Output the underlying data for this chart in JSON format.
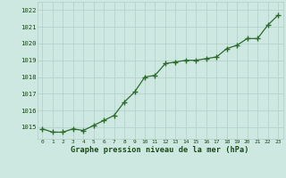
{
  "x": [
    0,
    1,
    2,
    3,
    4,
    5,
    6,
    7,
    8,
    9,
    10,
    11,
    12,
    13,
    14,
    15,
    16,
    17,
    18,
    19,
    20,
    21,
    22,
    23
  ],
  "y": [
    1014.9,
    1014.7,
    1014.7,
    1014.9,
    1014.8,
    1015.1,
    1015.4,
    1015.7,
    1016.5,
    1017.1,
    1018.0,
    1018.1,
    1018.8,
    1018.9,
    1019.0,
    1019.0,
    1019.1,
    1019.2,
    1019.7,
    1019.9,
    1020.3,
    1020.3,
    1021.1,
    1021.7
  ],
  "line_color": "#2d6b2d",
  "marker_color": "#2d6b2d",
  "bg_color": "#cce8e0",
  "grid_color": "#b0cfc8",
  "xlabel": "Graphe pression niveau de la mer (hPa)",
  "xlabel_color": "#1a4a1a",
  "xtick_labels": [
    "0",
    "1",
    "2",
    "3",
    "4",
    "5",
    "6",
    "7",
    "8",
    "9",
    "10",
    "11",
    "12",
    "13",
    "14",
    "15",
    "16",
    "17",
    "18",
    "19",
    "20",
    "21",
    "22",
    "23"
  ],
  "ytick_min": 1015,
  "ytick_max": 1022,
  "ytick_step": 1,
  "ylim_min": 1014.3,
  "ylim_max": 1022.5,
  "xlim_min": -0.5,
  "xlim_max": 23.5
}
